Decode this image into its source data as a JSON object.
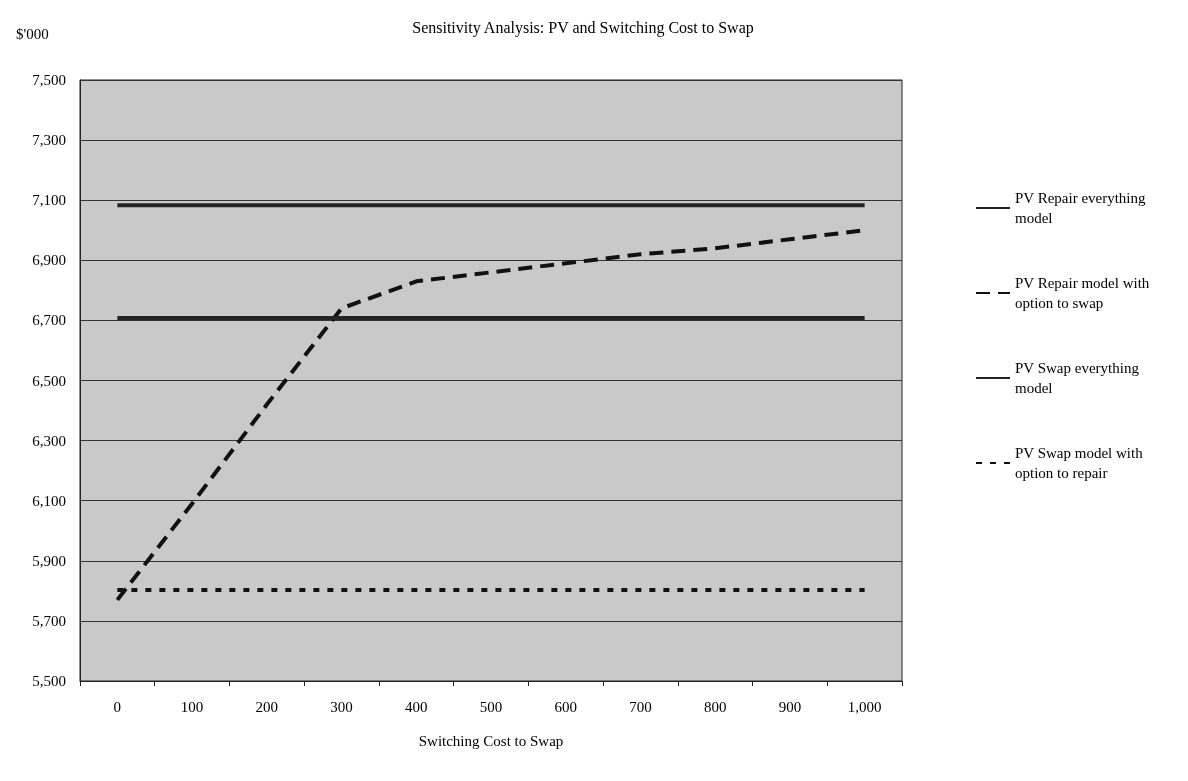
{
  "chart_data": {
    "type": "line",
    "title": "Sensitivity Analysis: PV and Switching Cost to Swap",
    "xlabel": "Switching Cost to Swap",
    "ylabel": "$'000",
    "categories": [
      "0",
      "100",
      "200",
      "300",
      "400",
      "500",
      "600",
      "700",
      "800",
      "900",
      "1,000"
    ],
    "series": [
      {
        "name": "PV Repair everything model",
        "color": "#222222",
        "line_style": "solid",
        "values": [
          7083,
          7083,
          7083,
          7083,
          7083,
          7083,
          7083,
          7083,
          7083,
          7083,
          7083
        ]
      },
      {
        "name": "PV Repair model with option to swap",
        "color": "#111111",
        "line_style": "dashed",
        "values": [
          5770,
          6090,
          6420,
          6740,
          6830,
          6860,
          6890,
          6920,
          6940,
          6970,
          7000
        ]
      },
      {
        "name": "PV Swap everything model",
        "color": "#222222",
        "line_style": "solid",
        "values": [
          6708,
          6708,
          6708,
          6708,
          6708,
          6708,
          6708,
          6708,
          6708,
          6708,
          6708
        ]
      },
      {
        "name": "PV Swap model with option to repair",
        "color": "#111111",
        "line_style": "dotted",
        "values": [
          5803,
          5803,
          5803,
          5803,
          5803,
          5803,
          5803,
          5803,
          5803,
          5803,
          5803
        ]
      }
    ],
    "ylim": [
      5500,
      7500
    ],
    "yticks": [
      {
        "value": 5500,
        "label": "5,500"
      },
      {
        "value": 5700,
        "label": "5,700"
      },
      {
        "value": 5900,
        "label": "5,900"
      },
      {
        "value": 6100,
        "label": "6,100"
      },
      {
        "value": 6300,
        "label": "6,300"
      },
      {
        "value": 6500,
        "label": "6,500"
      },
      {
        "value": 6700,
        "label": "6,700"
      },
      {
        "value": 6900,
        "label": "6,900"
      },
      {
        "value": 7100,
        "label": "7,100"
      },
      {
        "value": 7300,
        "label": "7,300"
      },
      {
        "value": 7500,
        "label": "7,500"
      }
    ],
    "grid": "y",
    "legend": "right",
    "marker": "none"
  }
}
